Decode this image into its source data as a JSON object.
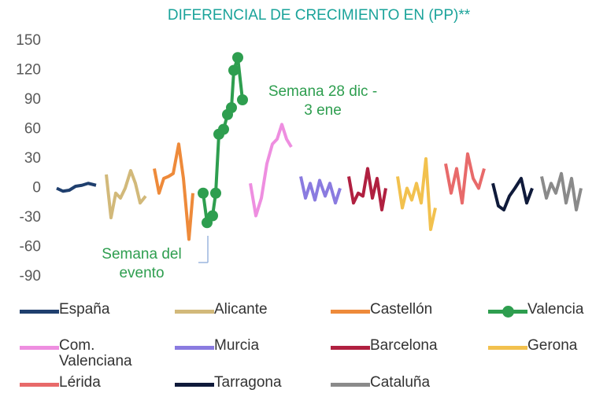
{
  "chart_data": {
    "type": "line",
    "title": "DIFERENCIAL DE CRECIMIENTO EN (PP)**",
    "ylim": [
      -90,
      150
    ],
    "yticks": [
      150,
      120,
      90,
      60,
      30,
      0,
      -30,
      -60,
      -90
    ],
    "xlim": [
      60,
      770
    ],
    "grid": false,
    "annotations": [
      {
        "text": [
          "Semana 28 dic -",
          "3 ene"
        ],
        "color": "#2e9e4f"
      },
      {
        "text": [
          "Semana del",
          "evento"
        ],
        "color": "#2e9e4f"
      }
    ],
    "series": [
      {
        "name": "España",
        "color": "#1f3f6e",
        "x": [
          72,
          80,
          88,
          96,
          104,
          112,
          122
        ],
        "values": [
          0,
          -3,
          -2,
          2,
          3,
          5,
          3
        ]
      },
      {
        "name": "Alicante",
        "color": "#d2b97a",
        "x": [
          135,
          141,
          147,
          153,
          159,
          166,
          172,
          178,
          185
        ],
        "values": [
          14,
          -30,
          -5,
          -10,
          0,
          18,
          5,
          -15,
          -8
        ]
      },
      {
        "name": "Castellón",
        "color": "#ee8a3a",
        "x": [
          196,
          202,
          208,
          214,
          220,
          227,
          233,
          240,
          245
        ],
        "values": [
          20,
          -5,
          10,
          12,
          15,
          45,
          10,
          -52,
          -5
        ]
      },
      {
        "name": "Valencia",
        "color": "#2e9e4f",
        "markers": true,
        "x": [
          258,
          263,
          270,
          274,
          278,
          284,
          289,
          294,
          297,
          302,
          308
        ],
        "values": [
          -5,
          -35,
          -28,
          -5,
          55,
          60,
          75,
          82,
          120,
          133,
          90
        ]
      },
      {
        "name": "Com. Valenciana",
        "color": "#ee8ee0",
        "x": [
          318,
          325,
          332,
          339,
          346,
          352,
          358,
          364,
          370
        ],
        "values": [
          5,
          -28,
          -10,
          25,
          45,
          50,
          65,
          50,
          42
        ]
      },
      {
        "name": "Murcia",
        "color": "#8a7be0",
        "x": [
          382,
          388,
          394,
          400,
          406,
          413,
          419,
          426,
          432
        ],
        "values": [
          12,
          -10,
          5,
          -12,
          8,
          -8,
          5,
          -15,
          0
        ]
      },
      {
        "name": "Barcelona",
        "color": "#b02040",
        "x": [
          443,
          449,
          455,
          461,
          467,
          473,
          479,
          485,
          490
        ],
        "values": [
          12,
          -15,
          -5,
          -8,
          20,
          -10,
          10,
          -22,
          0
        ]
      },
      {
        "name": "Gerona",
        "color": "#f2c14e",
        "x": [
          505,
          511,
          517,
          523,
          529,
          535,
          541,
          547,
          553
        ],
        "values": [
          12,
          -20,
          0,
          -12,
          5,
          -15,
          30,
          -42,
          -20
        ]
      },
      {
        "name": "Lérida",
        "color": "#e86a6a",
        "x": [
          566,
          573,
          580,
          587,
          594,
          601,
          608,
          615
        ],
        "values": [
          25,
          -5,
          20,
          -15,
          35,
          10,
          0,
          20
        ]
      },
      {
        "name": "Tarragona",
        "color": "#0f1a3a",
        "x": [
          626,
          633,
          640,
          647,
          654,
          662,
          669,
          676
        ],
        "values": [
          5,
          -18,
          -22,
          -8,
          0,
          10,
          -15,
          0
        ]
      },
      {
        "name": "Cataluña",
        "color": "#8a8a8a",
        "x": [
          688,
          694,
          700,
          706,
          713,
          719,
          726,
          732,
          738
        ],
        "values": [
          12,
          -10,
          5,
          -5,
          15,
          -15,
          10,
          -22,
          0
        ]
      }
    ]
  }
}
